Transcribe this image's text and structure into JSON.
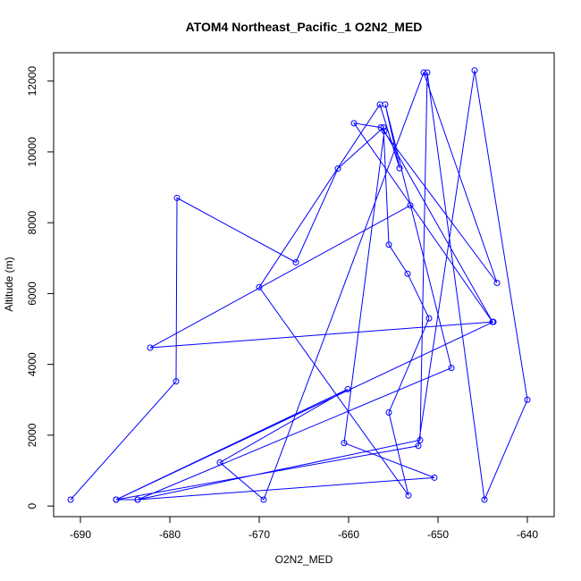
{
  "chart_data": {
    "type": "line",
    "title": "ATOM4 Northeast_Pacific_1 O2N2_MED",
    "xlabel": "O2N2_MED",
    "ylabel": "Altitude (m)",
    "xlim": [
      -693,
      -637
    ],
    "ylim": [
      -300,
      12800
    ],
    "xticks": [
      -690,
      -680,
      -670,
      -660,
      -650,
      -640
    ],
    "yticks": [
      0,
      2000,
      4000,
      6000,
      8000,
      10000,
      12000
    ],
    "grid": false,
    "legend": "none",
    "markers": "open-circle",
    "color": "#0000ff",
    "series": [
      {
        "x": [
          -691.1,
          -679.3,
          -679.2,
          -665.9,
          -661.2,
          -656.1,
          -655.5,
          -653.4,
          -651.0,
          -655.5,
          -653.3,
          -670.0,
          -656.5,
          -654.3,
          -655.9,
          -648.5,
          -683.6,
          -652.0,
          -651.2,
          -644.8,
          -640.0,
          -645.9,
          -652.2,
          -686.0,
          -660.1,
          -674.4,
          -669.5,
          -651.6,
          -643.4,
          -656.4,
          -659.4,
          -643.9,
          -656.0,
          -660.5,
          -650.4,
          -683.6,
          -686.0,
          -643.8,
          -682.2,
          -653.1
        ],
        "y": [
          180,
          3520,
          8700,
          6880,
          9530,
          10690,
          7380,
          6560,
          5300,
          2640,
          300,
          6180,
          11340,
          9540,
          11340,
          3900,
          180,
          1860,
          12240,
          180,
          3000,
          12300,
          1700,
          180,
          3300,
          1230,
          180,
          12240,
          6300,
          10690,
          10810,
          5200,
          10590,
          1780,
          800,
          180,
          180,
          5200,
          4470,
          8490
        ]
      }
    ]
  }
}
